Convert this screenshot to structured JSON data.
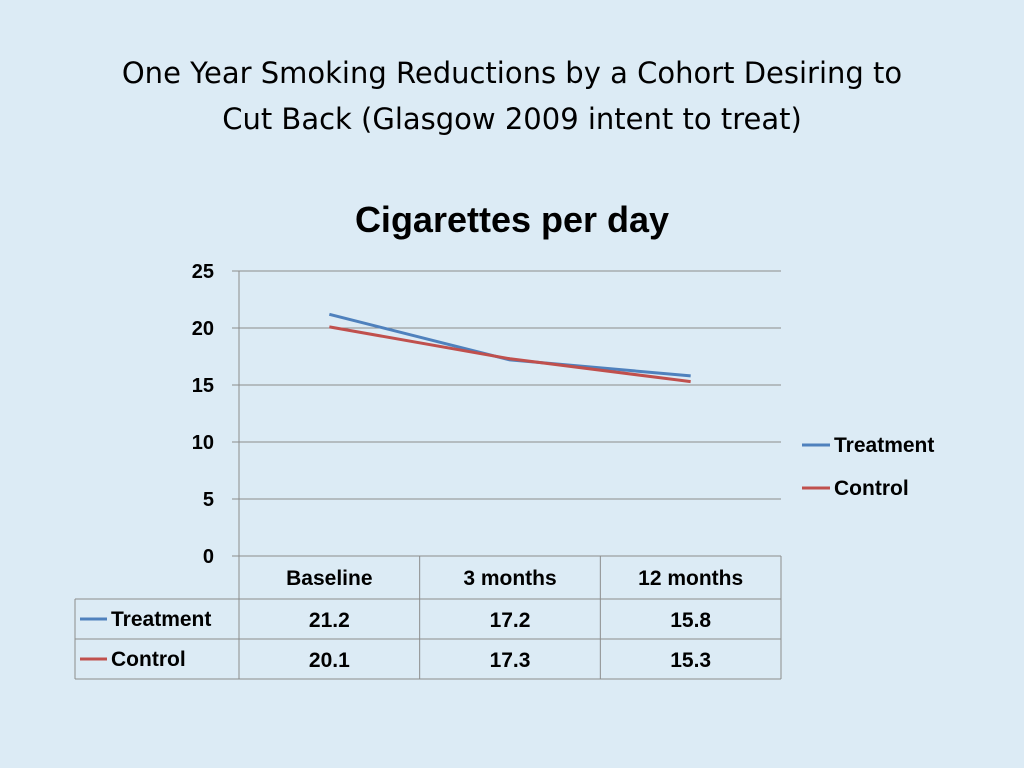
{
  "slide": {
    "title_line1": "One Year Smoking Reductions by a Cohort Desiring to",
    "title_line2": "Cut Back (Glasgow 2009 intent to treat)"
  },
  "chart_data": {
    "type": "line",
    "title": "Cigarettes per day",
    "categories": [
      "Baseline",
      "3 months",
      "12 months"
    ],
    "series": [
      {
        "name": "Treatment",
        "values": [
          21.2,
          17.2,
          15.8
        ],
        "color": "#4f81bd"
      },
      {
        "name": "Control",
        "values": [
          20.1,
          17.3,
          15.3
        ],
        "color": "#c0504d"
      }
    ],
    "ylim": [
      0,
      25
    ],
    "yticks": [
      0,
      5,
      10,
      15,
      20,
      25
    ],
    "grid": true,
    "legend_position": "right",
    "data_table": true
  }
}
